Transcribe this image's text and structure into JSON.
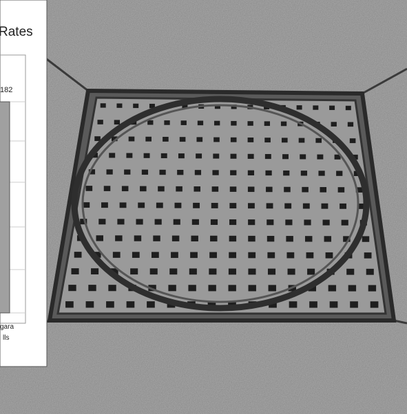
{
  "overlay_chart": {
    "title": "Rates",
    "value_label": 182,
    "category_lines": [
      "gara",
      "lls"
    ]
  }
}
